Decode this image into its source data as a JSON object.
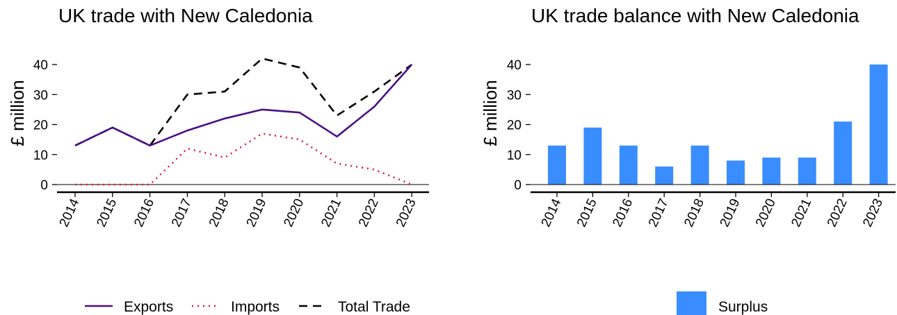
{
  "chart_data": [
    {
      "type": "line",
      "title": "UK trade with New Caledonia",
      "ylabel": "£ million",
      "xlabel": "",
      "categories": [
        "2014",
        "2015",
        "2016",
        "2017",
        "2018",
        "2019",
        "2020",
        "2021",
        "2022",
        "2023"
      ],
      "yticks": [
        0,
        10,
        20,
        30,
        40
      ],
      "ylim": [
        0,
        44
      ],
      "grid": false,
      "legend_position": "bottom",
      "series": [
        {
          "name": "Exports",
          "values": [
            13,
            19,
            13,
            18,
            22,
            25,
            24,
            16,
            26,
            40
          ],
          "color": "#4b0f87",
          "dash": "solid"
        },
        {
          "name": "Imports",
          "values": [
            0,
            0,
            0,
            12,
            9,
            17,
            15,
            7,
            5,
            0
          ],
          "color": "#e3163a",
          "dash": "dotted"
        },
        {
          "name": "Total Trade",
          "values": [
            13,
            19,
            13,
            30,
            31,
            42,
            39,
            23,
            31,
            40
          ],
          "color": "#000000",
          "dash": "dashed"
        }
      ]
    },
    {
      "type": "bar",
      "title": "UK trade balance with New Caledonia",
      "ylabel": "£ million",
      "xlabel": "",
      "categories": [
        "2014",
        "2015",
        "2016",
        "2017",
        "2018",
        "2019",
        "2020",
        "2021",
        "2022",
        "2023"
      ],
      "yticks": [
        0,
        10,
        20,
        30,
        40
      ],
      "ylim": [
        0,
        44
      ],
      "grid": false,
      "legend_position": "bottom",
      "series": [
        {
          "name": "Surplus",
          "values": [
            13,
            19,
            13,
            6,
            13,
            8,
            9,
            9,
            21,
            40
          ],
          "color": "#3a8dff"
        }
      ]
    }
  ]
}
